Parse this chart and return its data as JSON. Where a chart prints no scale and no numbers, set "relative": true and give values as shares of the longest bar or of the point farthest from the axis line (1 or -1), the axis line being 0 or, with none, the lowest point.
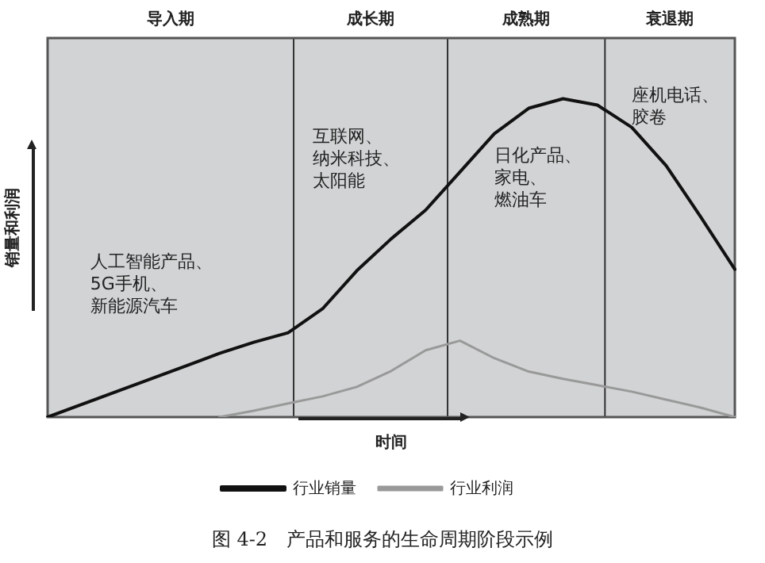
{
  "chart_data": {
    "type": "line",
    "relative": true,
    "title": "图 4-2　产品和服务的生命周期阶段示例",
    "xlabel": "时间",
    "ylabel": "销量和利润",
    "legend": "bottom",
    "marker": "none",
    "line_style": "solid",
    "categories": [
      null,
      null,
      null,
      null,
      null,
      null,
      null,
      null,
      null,
      null,
      null,
      null,
      null,
      null,
      null,
      null,
      null,
      null,
      null,
      null,
      null
    ],
    "series": [
      {
        "name": "行业销量",
        "color": "#111111",
        "values": [
          0,
          0.04,
          0.08,
          0.12,
          0.16,
          0.2,
          0.235,
          0.265,
          0.34,
          0.46,
          0.56,
          0.65,
          0.77,
          0.89,
          0.97,
          1,
          0.98,
          0.91,
          0.79,
          0.63,
          0.464
        ]
      },
      {
        "name": "行业利润",
        "color": "#999999",
        "values": [
          null,
          null,
          null,
          null,
          null,
          0,
          0.02,
          0.043,
          0.065,
          0.095,
          0.145,
          0.21,
          0.24,
          0.185,
          0.143,
          0.12,
          0.1,
          0.08,
          0.055,
          0.03,
          0
        ]
      }
    ],
    "annotations": [
      "导入期",
      "成长期",
      "成熟期",
      "衰退期",
      "人工智能产品、5G手机、新能源汽车",
      "互联网、纳米科技、太阳能",
      "日化产品、家电、燃油车",
      "座机电话、胶卷"
    ]
  }
}
